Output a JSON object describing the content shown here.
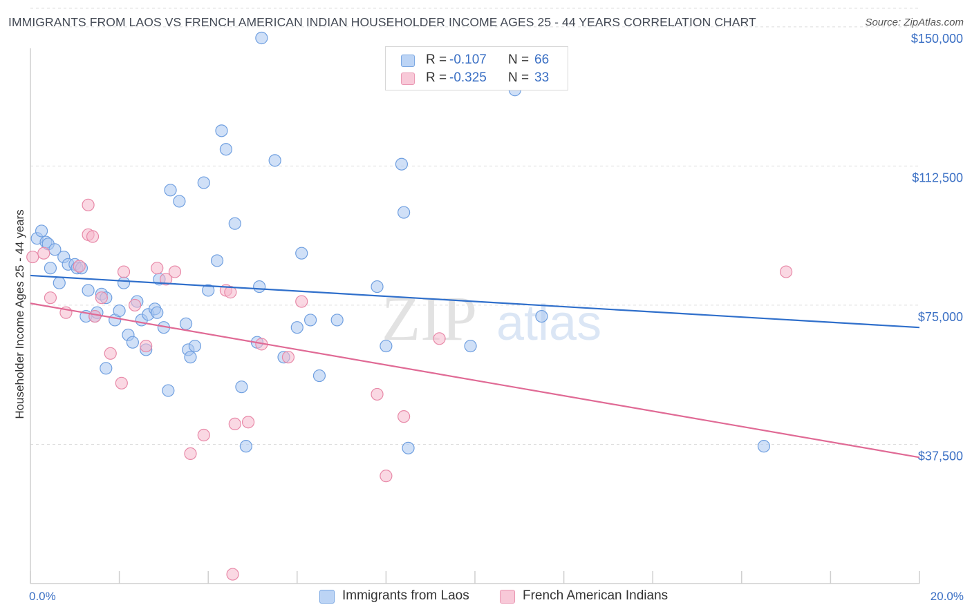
{
  "title": "IMMIGRANTS FROM LAOS VS FRENCH AMERICAN INDIAN HOUSEHOLDER INCOME AGES 25 - 44 YEARS CORRELATION CHART",
  "source": "Source: ZipAtlas.com",
  "watermark": {
    "zip": "ZIP",
    "atlas": "atlas"
  },
  "legend_top": [
    {
      "r_label": "R =",
      "r_value": "-0.107",
      "n_label": "N =",
      "n_value": "66"
    },
    {
      "r_label": "R =",
      "r_value": "-0.325",
      "n_label": "N =",
      "n_value": "33"
    }
  ],
  "colors": {
    "blue_fill": "#a9c7f0",
    "blue_stroke": "#6f9fe0",
    "blue_line": "#2f6fcb",
    "pink_fill": "#f5b8cc",
    "pink_stroke": "#e889a8",
    "pink_line": "#e06a95",
    "axis_text": "#3a6fc4",
    "grid": "#dddddd"
  },
  "chart_data": {
    "type": "scatter",
    "title": "IMMIGRANTS FROM LAOS VS FRENCH AMERICAN INDIAN HOUSEHOLDER INCOME AGES 25 - 44 YEARS CORRELATION CHART",
    "xlabel": "",
    "ylabel": "Householder Income Ages 25 - 44 years",
    "xlim": [
      0,
      20
    ],
    "ylim": [
      0,
      155000
    ],
    "x_tick_labels": [
      "0.0%",
      "20.0%"
    ],
    "y_ticks": [
      37500,
      75000,
      112500,
      150000
    ],
    "y_tick_labels": [
      "$37,500",
      "$75,000",
      "$112,500",
      "$150,000"
    ],
    "grid": true,
    "legend_position": "bottom",
    "series": [
      {
        "name": "Immigrants from Laos",
        "trend": {
          "x": [
            0,
            20
          ],
          "y": [
            83000,
            69000
          ]
        },
        "points": [
          [
            0.15,
            93000
          ],
          [
            0.35,
            92000
          ],
          [
            0.4,
            91500
          ],
          [
            0.25,
            95000
          ],
          [
            0.45,
            85000
          ],
          [
            0.55,
            90000
          ],
          [
            0.65,
            81000
          ],
          [
            0.75,
            88000
          ],
          [
            0.85,
            86000
          ],
          [
            1.0,
            86000
          ],
          [
            1.05,
            85000
          ],
          [
            1.15,
            85000
          ],
          [
            1.3,
            79000
          ],
          [
            1.25,
            72000
          ],
          [
            1.45,
            72000
          ],
          [
            1.5,
            73000
          ],
          [
            1.6,
            78000
          ],
          [
            1.7,
            77000
          ],
          [
            1.7,
            58000
          ],
          [
            1.9,
            71000
          ],
          [
            2.0,
            73500
          ],
          [
            2.1,
            81000
          ],
          [
            2.2,
            67000
          ],
          [
            2.3,
            65000
          ],
          [
            2.4,
            76000
          ],
          [
            2.5,
            71000
          ],
          [
            2.6,
            63000
          ],
          [
            2.65,
            72500
          ],
          [
            2.8,
            74000
          ],
          [
            2.85,
            73000
          ],
          [
            2.9,
            82000
          ],
          [
            3.0,
            69000
          ],
          [
            3.1,
            52000
          ],
          [
            3.15,
            106000
          ],
          [
            3.35,
            103000
          ],
          [
            3.5,
            70000
          ],
          [
            3.55,
            63000
          ],
          [
            3.6,
            61000
          ],
          [
            3.7,
            64000
          ],
          [
            3.9,
            108000
          ],
          [
            4.0,
            79000
          ],
          [
            4.2,
            87000
          ],
          [
            4.3,
            122000
          ],
          [
            4.4,
            117000
          ],
          [
            4.6,
            97000
          ],
          [
            4.75,
            53000
          ],
          [
            4.85,
            37000
          ],
          [
            5.1,
            65000
          ],
          [
            5.15,
            80000
          ],
          [
            5.2,
            147000
          ],
          [
            5.5,
            114000
          ],
          [
            5.7,
            61000
          ],
          [
            6.0,
            69000
          ],
          [
            6.1,
            89000
          ],
          [
            6.3,
            71000
          ],
          [
            6.5,
            56000
          ],
          [
            6.9,
            71000
          ],
          [
            7.8,
            80000
          ],
          [
            8.0,
            64000
          ],
          [
            8.35,
            113000
          ],
          [
            8.4,
            100000
          ],
          [
            8.5,
            36500
          ],
          [
            9.9,
            64000
          ],
          [
            10.9,
            133000
          ],
          [
            11.5,
            72000
          ],
          [
            16.5,
            37000
          ]
        ]
      },
      {
        "name": "French American Indians",
        "trend": {
          "x": [
            0,
            20
          ],
          "y": [
            75500,
            34000
          ]
        },
        "points": [
          [
            0.05,
            88000
          ],
          [
            0.3,
            89000
          ],
          [
            0.45,
            77000
          ],
          [
            0.8,
            73000
          ],
          [
            1.1,
            85500
          ],
          [
            1.3,
            94000
          ],
          [
            1.45,
            72000
          ],
          [
            1.6,
            77000
          ],
          [
            1.3,
            102000
          ],
          [
            1.8,
            62000
          ],
          [
            2.1,
            84000
          ],
          [
            2.05,
            54000
          ],
          [
            2.35,
            75000
          ],
          [
            2.6,
            64000
          ],
          [
            2.85,
            85000
          ],
          [
            3.05,
            82000
          ],
          [
            3.25,
            84000
          ],
          [
            3.6,
            35000
          ],
          [
            3.9,
            40000
          ],
          [
            4.4,
            79000
          ],
          [
            4.5,
            78500
          ],
          [
            4.6,
            43000
          ],
          [
            4.9,
            43500
          ],
          [
            5.2,
            64500
          ],
          [
            5.8,
            61000
          ],
          [
            6.1,
            76000
          ],
          [
            4.55,
            2500
          ],
          [
            7.8,
            51000
          ],
          [
            8.0,
            29000
          ],
          [
            8.4,
            45000
          ],
          [
            9.2,
            66000
          ],
          [
            17.0,
            84000
          ],
          [
            1.4,
            93500
          ]
        ]
      }
    ]
  }
}
